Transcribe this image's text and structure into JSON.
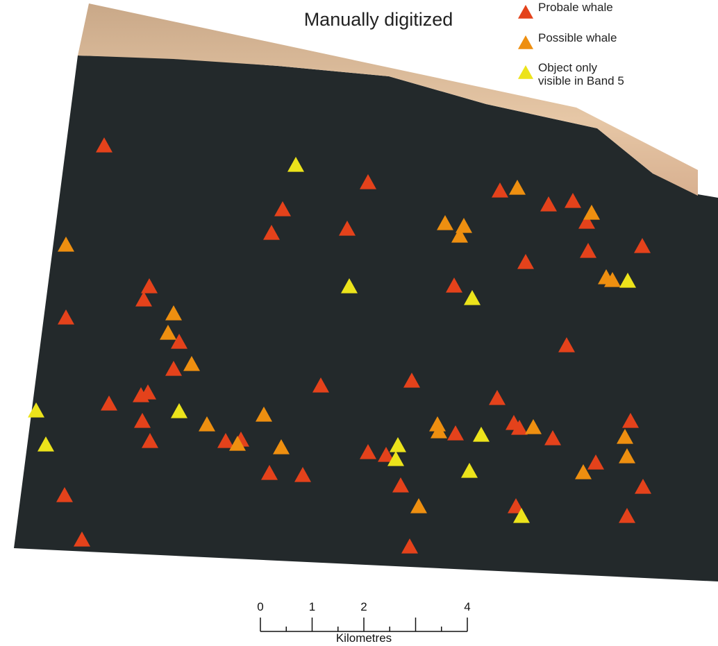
{
  "map": {
    "title": "Manually digitized",
    "legend": [
      {
        "label": [
          "Probale whale"
        ],
        "color": "#e4421b"
      },
      {
        "label": [
          "Possible whale"
        ],
        "color": "#ee8f10"
      },
      {
        "label": [
          "Object only",
          "visible in Band 5"
        ],
        "color": "#ece31b"
      }
    ],
    "scale_bar": {
      "labels": [
        "0",
        "1",
        "2",
        "4"
      ],
      "unit": "Kilometres"
    }
  }
}
